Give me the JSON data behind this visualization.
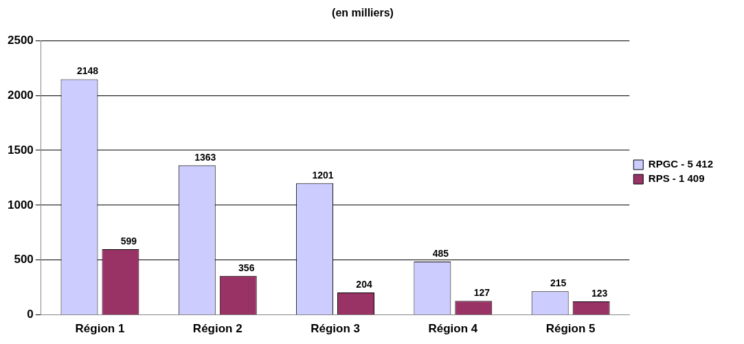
{
  "chart_data": {
    "type": "bar",
    "title": "(en milliers)",
    "categories": [
      "Région 1",
      "Région 2",
      "Région 3",
      "Région 4",
      "Région 5"
    ],
    "series": [
      {
        "name": "RPGC - 5 412",
        "color": "#ccccff",
        "values": [
          2148,
          1363,
          1201,
          485,
          215
        ]
      },
      {
        "name": "RPS - 1 409",
        "color": "#993366",
        "values": [
          599,
          356,
          204,
          127,
          123
        ]
      }
    ],
    "ylim": [
      0,
      2500
    ],
    "yticks": [
      0,
      500,
      1000,
      1500,
      2000,
      2500
    ],
    "grid": "y",
    "legend": "right",
    "data_labels": true
  }
}
